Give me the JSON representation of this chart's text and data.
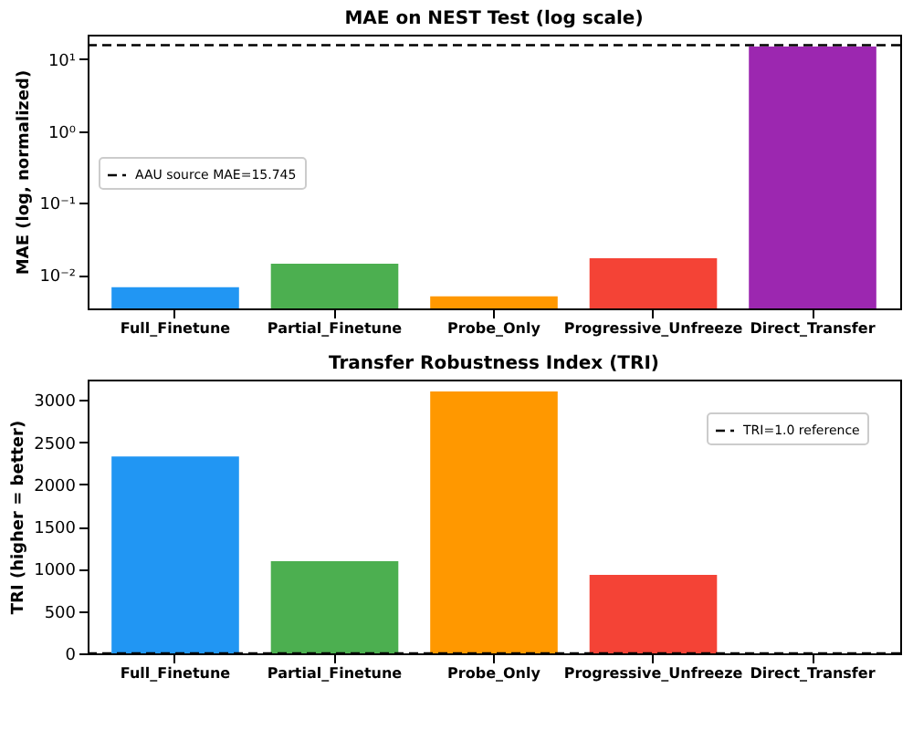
{
  "chart_data": [
    {
      "type": "bar",
      "title": "MAE on NEST Test (log scale)",
      "ylabel": "MAE (log, normalized)",
      "categories": [
        "Full_Finetune",
        "Partial_Finetune",
        "Probe_Only",
        "Progressive_Unfreeze",
        "Direct_Transfer"
      ],
      "values": [
        0.0067,
        0.0143,
        0.005,
        0.017,
        15
      ],
      "colors": [
        "#2196f3",
        "#4caf50",
        "#ff9800",
        "#f44336",
        "#9c27b0"
      ],
      "log": true,
      "ylim": [
        0.0034,
        22
      ],
      "yticks": [
        {
          "value": 0.01,
          "label": "10⁻²"
        },
        {
          "value": 0.1,
          "label": "10⁻¹"
        },
        {
          "value": 1,
          "label": "10⁰"
        },
        {
          "value": 10,
          "label": "10¹"
        }
      ],
      "ref_lines": [
        {
          "axis": "y",
          "value": 15.745,
          "label": "AAU source MAE=15.745",
          "color": "#000000",
          "line_style": "dashed"
        }
      ],
      "legend": "center left"
    },
    {
      "type": "bar",
      "title": "Transfer Robustness Index (TRI)",
      "ylabel": "TRI (higher = better)",
      "categories": [
        "Full_Finetune",
        "Partial_Finetune",
        "Probe_Only",
        "Progressive_Unfreeze",
        "Direct_Transfer"
      ],
      "values": [
        2330,
        1090,
        3100,
        930,
        null
      ],
      "colors": [
        "#2196f3",
        "#4caf50",
        "#ff9800",
        "#f44336",
        "#9c27b0"
      ],
      "ylim": [
        0,
        3240
      ],
      "yticks": [
        0,
        500,
        1000,
        1500,
        2000,
        2500,
        3000
      ],
      "ref_lines": [
        {
          "axis": "y",
          "value": 1,
          "label": "TRI=1.0 reference",
          "color": "#000000",
          "line_style": "dashed"
        }
      ],
      "legend": "top right"
    }
  ]
}
